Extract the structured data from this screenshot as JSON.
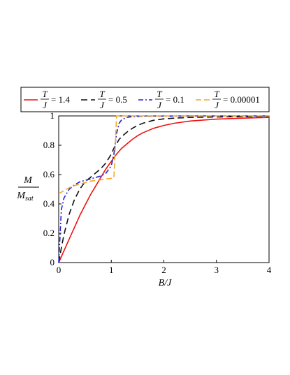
{
  "chart_data": {
    "type": "line",
    "xlabel": "B/J",
    "ylabel_num": "M",
    "ylabel_den": "M",
    "ylabel_den_sub": "sat",
    "xlim": [
      0,
      4
    ],
    "ylim": [
      0,
      1
    ],
    "xticks": [
      "0",
      "1",
      "2",
      "3",
      "4"
    ],
    "yticks": [
      "0",
      "0.2",
      "0.4",
      "0.6",
      "0.8",
      "1"
    ],
    "grid": false,
    "legend_position": "top",
    "legend_numerator": "T",
    "legend_denominator": "J",
    "x": [
      0,
      0.05,
      0.1,
      0.2,
      0.3,
      0.4,
      0.5,
      0.6,
      0.7,
      0.8,
      0.9,
      1.0,
      1.05,
      1.1,
      1.15,
      1.2,
      1.3,
      1.4,
      1.5,
      1.6,
      1.8,
      2.0,
      2.2,
      2.5,
      3.0,
      3.5,
      4.0
    ],
    "series": [
      {
        "name": "= 1.4",
        "color": "#ee1111",
        "dash": "solid",
        "values": [
          0,
          0.04,
          0.08,
          0.16,
          0.24,
          0.32,
          0.39,
          0.46,
          0.52,
          0.58,
          0.64,
          0.69,
          0.715,
          0.74,
          0.76,
          0.78,
          0.81,
          0.84,
          0.865,
          0.885,
          0.915,
          0.935,
          0.95,
          0.965,
          0.978,
          0.985,
          0.99
        ]
      },
      {
        "name": "= 0.5",
        "color": "#111111",
        "dash": "long-dash",
        "values": [
          0,
          0.1,
          0.19,
          0.33,
          0.43,
          0.5,
          0.55,
          0.58,
          0.61,
          0.64,
          0.68,
          0.74,
          0.78,
          0.81,
          0.84,
          0.86,
          0.89,
          0.915,
          0.935,
          0.95,
          0.97,
          0.98,
          0.985,
          0.99,
          0.993,
          0.995,
          0.997
        ]
      },
      {
        "name": "= 0.1",
        "color": "#2222dd",
        "dash": "dash-dot",
        "values": [
          0,
          0.36,
          0.44,
          0.5,
          0.53,
          0.55,
          0.56,
          0.57,
          0.58,
          0.59,
          0.61,
          0.66,
          0.74,
          0.88,
          0.95,
          0.975,
          0.99,
          0.995,
          0.997,
          0.998,
          0.999,
          0.999,
          0.999,
          1.0,
          1.0,
          1.0,
          1.0
        ]
      },
      {
        "name": "= 0.00001",
        "color": "#f5a623",
        "dash": "dash",
        "values": [
          0.47,
          0.48,
          0.49,
          0.51,
          0.525,
          0.535,
          0.545,
          0.555,
          0.56,
          0.565,
          0.57,
          0.575,
          0.578,
          1.0,
          1.0,
          1.0,
          1.0,
          1.0,
          1.0,
          1.0,
          1.0,
          1.0,
          1.0,
          1.0,
          1.0,
          1.0,
          1.0
        ]
      }
    ]
  }
}
